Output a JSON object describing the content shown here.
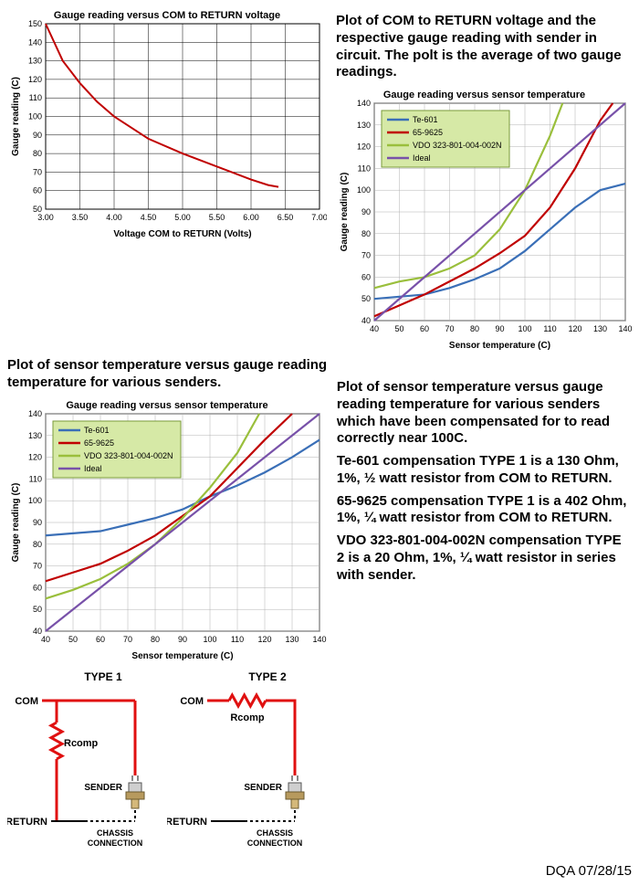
{
  "footer": "DQA 07/28/15",
  "text_right_top": "Plot of COM to RETURN voltage and the respective gauge reading with sender in circuit. The polt is the average of two gauge readings.",
  "text_left_mid": "Plot of sensor temperature versus gauge reading temperature for various senders.",
  "text_right_mid": "Plot of sensor temperature versus gauge reading temperature for various senders which have been compensated for to read correctly near 100C.",
  "text_comp1": "Te-601 compensation TYPE 1 is a 130 Ohm, 1%, ½ watt resistor from COM to RETURN.",
  "text_comp2": "65-9625 compensation TYPE 1 is a 402 Ohm, 1%, ¼ watt resistor from COM to RETURN.",
  "text_comp3": "VDO 323-801-004-002N compensation TYPE 2 is a 20 Ohm, 1%, ¼ watt resistor in series with sender.",
  "chart1": {
    "title": "Gauge reading versus COM to RETURN voltage",
    "xlabel": "Voltage COM to RETURN (Volts)",
    "ylabel": "Gauge reading (C)",
    "xlim": [
      3.0,
      7.0
    ],
    "ylim": [
      50,
      150
    ],
    "xticks": [
      "3.00",
      "3.50",
      "4.00",
      "4.50",
      "5.00",
      "5.50",
      "6.00",
      "6.50",
      "7.00"
    ],
    "yticks": [
      50,
      60,
      70,
      80,
      90,
      100,
      110,
      120,
      130,
      140,
      150
    ],
    "bg": "#ffffff",
    "grid": "#000000",
    "series": [
      {
        "name": "main",
        "color": "#c00000",
        "width": 2,
        "points": [
          [
            3.0,
            150
          ],
          [
            3.25,
            130
          ],
          [
            3.5,
            118
          ],
          [
            3.75,
            108
          ],
          [
            4.0,
            100
          ],
          [
            4.25,
            94
          ],
          [
            4.5,
            88
          ],
          [
            5.0,
            80
          ],
          [
            5.5,
            73
          ],
          [
            6.0,
            66
          ],
          [
            6.25,
            63
          ],
          [
            6.4,
            62
          ]
        ]
      }
    ]
  },
  "chart2": {
    "title": "Gauge reading versus sensor temperature",
    "xlabel": "Sensor temperature (C)",
    "ylabel": "Gauge reading (C)",
    "xlim": [
      40,
      140
    ],
    "ylim": [
      40,
      140
    ],
    "xticks": [
      40,
      50,
      60,
      70,
      80,
      90,
      100,
      110,
      120,
      130,
      140
    ],
    "yticks": [
      40,
      50,
      60,
      70,
      80,
      90,
      100,
      110,
      120,
      130,
      140
    ],
    "bg": "#ffffff",
    "grid": "#b0b0b0",
    "legend_bg": "#d6e9a6",
    "legend_border": "#7a9a3a",
    "series": [
      {
        "name": "Te-601",
        "color": "#3a6fb7",
        "width": 2.2,
        "points": [
          [
            40,
            50
          ],
          [
            50,
            51
          ],
          [
            60,
            52
          ],
          [
            70,
            55
          ],
          [
            80,
            59
          ],
          [
            90,
            64
          ],
          [
            100,
            72
          ],
          [
            110,
            82
          ],
          [
            120,
            92
          ],
          [
            130,
            100
          ],
          [
            140,
            103
          ]
        ]
      },
      {
        "name": "65-9625",
        "color": "#c00000",
        "width": 2.2,
        "points": [
          [
            40,
            42
          ],
          [
            50,
            47
          ],
          [
            60,
            52
          ],
          [
            70,
            58
          ],
          [
            80,
            64
          ],
          [
            90,
            71
          ],
          [
            100,
            79
          ],
          [
            110,
            92
          ],
          [
            120,
            110
          ],
          [
            130,
            132
          ],
          [
            135,
            140
          ]
        ]
      },
      {
        "name": "VDO 323-801-004-002N",
        "color": "#9abf3c",
        "width": 2.2,
        "points": [
          [
            40,
            55
          ],
          [
            50,
            58
          ],
          [
            60,
            60
          ],
          [
            70,
            64
          ],
          [
            80,
            70
          ],
          [
            90,
            82
          ],
          [
            100,
            100
          ],
          [
            110,
            125
          ],
          [
            115,
            140
          ]
        ]
      },
      {
        "name": "Ideal",
        "color": "#7851a9",
        "width": 2.2,
        "points": [
          [
            40,
            40
          ],
          [
            140,
            140
          ]
        ]
      }
    ]
  },
  "chart3": {
    "title": "Gauge reading versus sensor temperature",
    "xlabel": "Sensor temperature (C)",
    "ylabel": "Gauge reading (C)",
    "xlim": [
      40,
      140
    ],
    "ylim": [
      40,
      140
    ],
    "xticks": [
      40,
      50,
      60,
      70,
      80,
      90,
      100,
      110,
      120,
      130,
      140
    ],
    "yticks": [
      40,
      50,
      60,
      70,
      80,
      90,
      100,
      110,
      120,
      130,
      140
    ],
    "bg": "#ffffff",
    "grid": "#b0b0b0",
    "legend_bg": "#d6e9a6",
    "legend_border": "#7a9a3a",
    "series": [
      {
        "name": "Te-601",
        "color": "#3a6fb7",
        "width": 2.2,
        "points": [
          [
            40,
            84
          ],
          [
            50,
            85
          ],
          [
            60,
            86
          ],
          [
            70,
            89
          ],
          [
            80,
            92
          ],
          [
            90,
            96
          ],
          [
            100,
            102
          ],
          [
            110,
            107
          ],
          [
            120,
            113
          ],
          [
            130,
            120
          ],
          [
            140,
            128
          ]
        ]
      },
      {
        "name": "65-9625",
        "color": "#c00000",
        "width": 2.2,
        "points": [
          [
            40,
            63
          ],
          [
            50,
            67
          ],
          [
            60,
            71
          ],
          [
            70,
            77
          ],
          [
            80,
            84
          ],
          [
            90,
            93
          ],
          [
            100,
            102
          ],
          [
            110,
            115
          ],
          [
            120,
            128
          ],
          [
            130,
            140
          ]
        ]
      },
      {
        "name": "VDO 323-801-004-002N",
        "color": "#9abf3c",
        "width": 2.2,
        "points": [
          [
            40,
            55
          ],
          [
            50,
            59
          ],
          [
            60,
            64
          ],
          [
            70,
            71
          ],
          [
            80,
            80
          ],
          [
            90,
            92
          ],
          [
            100,
            106
          ],
          [
            110,
            122
          ],
          [
            118,
            140
          ]
        ]
      },
      {
        "name": "Ideal",
        "color": "#7851a9",
        "width": 2.2,
        "points": [
          [
            40,
            40
          ],
          [
            140,
            140
          ]
        ]
      }
    ]
  },
  "schematic": {
    "type1_title": "TYPE 1",
    "type2_title": "TYPE 2",
    "com": "COM",
    "rcomp": "Rcomp",
    "sender": "SENDER",
    "return": "RETURN",
    "chassis": "CHASSIS CONNECTION",
    "wire_color": "#e01010",
    "wire_width": 3
  }
}
